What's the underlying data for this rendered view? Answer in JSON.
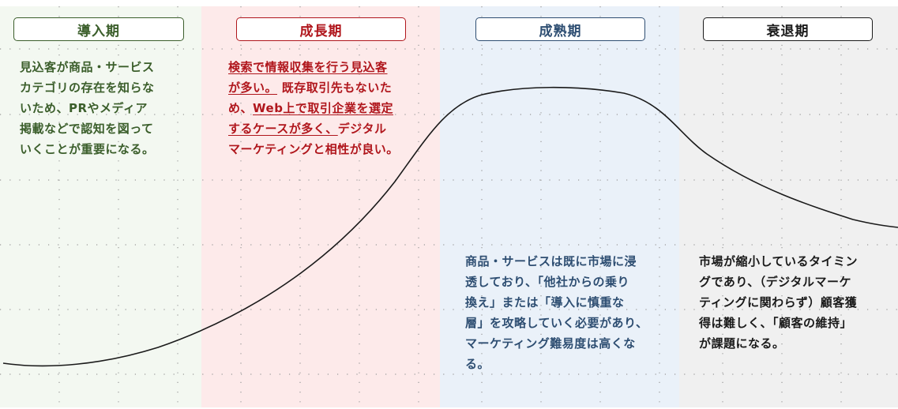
{
  "colors": {
    "intro": {
      "bg": "#f3f8f1",
      "accent": "#3b5e2b"
    },
    "growth": {
      "bg": "#fdeaea",
      "accent": "#b0161c"
    },
    "maturity": {
      "bg": "#eaf1f9",
      "accent": "#2e4e72"
    },
    "decline": {
      "bg": "#f0f0f0",
      "accent": "#1a1a1a"
    },
    "curve": "#1a1a1a",
    "grid": "#9a9a9a"
  },
  "phases": {
    "intro": {
      "label": "導入期",
      "lines": [
        "見込客が商品・サービス",
        "カテゴリの存在を知らな",
        "いため、PRやメディア",
        "掲載などで認知を図って",
        "いくことが重要になる。"
      ]
    },
    "growth": {
      "label": "成長期",
      "lines": [
        "検索で情報収集を行う見込客",
        "が多い。",
        "既存取引先もないた",
        "め、",
        "Web上で取引企業を選定",
        "するケースが多く、",
        "デジタル",
        "マーケティングと相性が良い。"
      ]
    },
    "maturity": {
      "label": "成熟期",
      "lines": [
        "商品・サービスは既に市場に浸",
        "透しており、「他社からの乗り",
        "換え」または「導入に慎重な",
        "層」を攻略していく必要があり、",
        "マーケティング難易度は高くな",
        "る。"
      ]
    },
    "decline": {
      "label": "衰退期",
      "lines": [
        "市場が縮小しているタイミン",
        "グであり、（デジタルマーケ",
        "ティングに関わらず）顧客獲",
        "得は難しく、「顧客の維持」",
        "が課題になる。"
      ]
    }
  }
}
